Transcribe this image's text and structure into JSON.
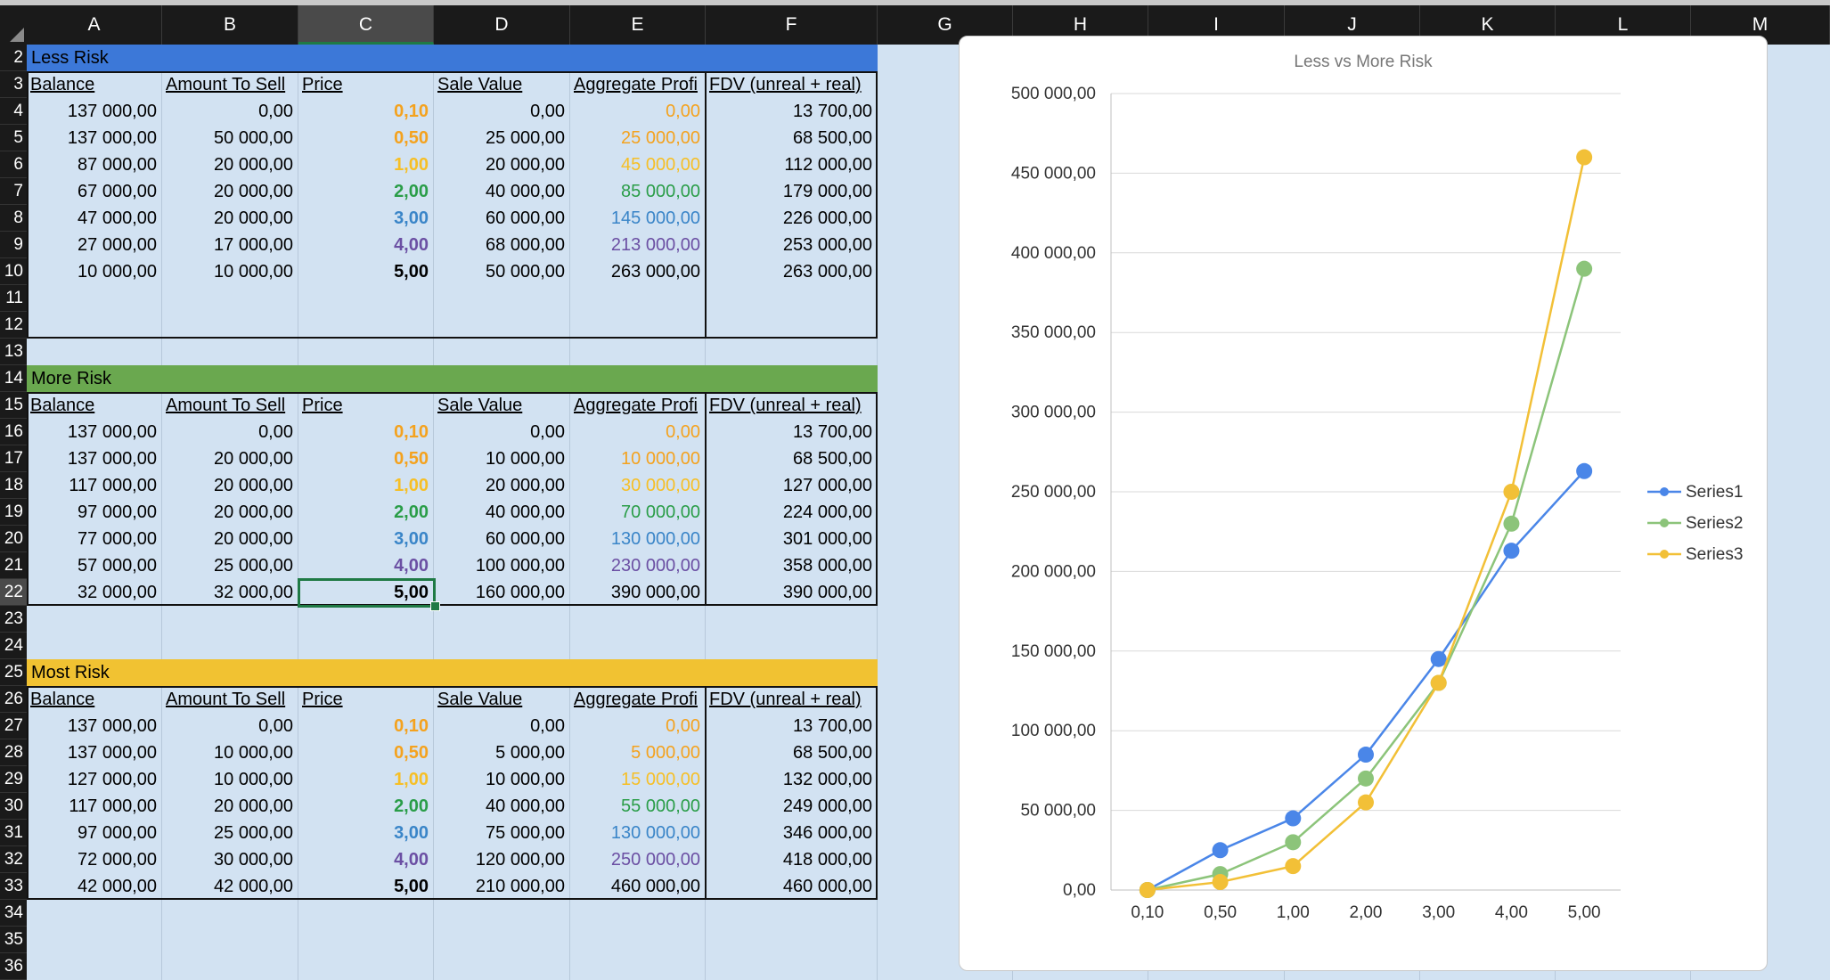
{
  "columns": [
    "A",
    "B",
    "C",
    "D",
    "E",
    "F",
    "G",
    "H",
    "I",
    "J",
    "K",
    "L",
    "M"
  ],
  "selected_column": "C",
  "rows": [
    "2",
    "3",
    "4",
    "5",
    "6",
    "7",
    "8",
    "9",
    "10",
    "11",
    "12",
    "13",
    "14",
    "15",
    "16",
    "17",
    "18",
    "19",
    "20",
    "21",
    "22",
    "23",
    "24",
    "25",
    "26",
    "27",
    "28",
    "29",
    "30",
    "31",
    "32",
    "33",
    "34",
    "35",
    "36"
  ],
  "selected_row": "22",
  "colors": {
    "less_band": "#3c78d8",
    "more_band": "#6aa84f",
    "most_band": "#f1c232",
    "price_010": "#f4a21e",
    "price_050": "#f4a21e",
    "price_100": "#f6bf26",
    "price_200": "#2a9d48",
    "price_300": "#3a85c8",
    "price_400": "#6b4fa3",
    "series1": "#4a86e8",
    "series2": "#8cc47a",
    "series3": "#f2c037"
  },
  "headers": [
    "Balance",
    "Amount To Sell",
    "Price",
    "Sale Value",
    "Aggregate Profi",
    "FDV (unreal + real)"
  ],
  "tables": [
    {
      "title": "Less Risk",
      "rows": [
        [
          "137 000,00",
          "0,00",
          "0,10",
          "0,00",
          "0,00",
          "13 700,00"
        ],
        [
          "137 000,00",
          "50 000,00",
          "0,50",
          "25 000,00",
          "25 000,00",
          "68 500,00"
        ],
        [
          "87 000,00",
          "20 000,00",
          "1,00",
          "20 000,00",
          "45 000,00",
          "112 000,00"
        ],
        [
          "67 000,00",
          "20 000,00",
          "2,00",
          "40 000,00",
          "85 000,00",
          "179 000,00"
        ],
        [
          "47 000,00",
          "20 000,00",
          "3,00",
          "60 000,00",
          "145 000,00",
          "226 000,00"
        ],
        [
          "27 000,00",
          "17 000,00",
          "4,00",
          "68 000,00",
          "213 000,00",
          "253 000,00"
        ],
        [
          "10 000,00",
          "10 000,00",
          "5,00",
          "50 000,00",
          "263 000,00",
          "263 000,00"
        ]
      ]
    },
    {
      "title": "More Risk",
      "rows": [
        [
          "137 000,00",
          "0,00",
          "0,10",
          "0,00",
          "0,00",
          "13 700,00"
        ],
        [
          "137 000,00",
          "20 000,00",
          "0,50",
          "10 000,00",
          "10 000,00",
          "68 500,00"
        ],
        [
          "117 000,00",
          "20 000,00",
          "1,00",
          "20 000,00",
          "30 000,00",
          "127 000,00"
        ],
        [
          "97 000,00",
          "20 000,00",
          "2,00",
          "40 000,00",
          "70 000,00",
          "224 000,00"
        ],
        [
          "77 000,00",
          "20 000,00",
          "3,00",
          "60 000,00",
          "130 000,00",
          "301 000,00"
        ],
        [
          "57 000,00",
          "25 000,00",
          "4,00",
          "100 000,00",
          "230 000,00",
          "358 000,00"
        ],
        [
          "32 000,00",
          "32 000,00",
          "5,00",
          "160 000,00",
          "390 000,00",
          "390 000,00"
        ]
      ]
    },
    {
      "title": "Most Risk",
      "rows": [
        [
          "137 000,00",
          "0,00",
          "0,10",
          "0,00",
          "0,00",
          "13 700,00"
        ],
        [
          "137 000,00",
          "10 000,00",
          "0,50",
          "5 000,00",
          "5 000,00",
          "68 500,00"
        ],
        [
          "127 000,00",
          "10 000,00",
          "1,00",
          "10 000,00",
          "15 000,00",
          "132 000,00"
        ],
        [
          "117 000,00",
          "20 000,00",
          "2,00",
          "40 000,00",
          "55 000,00",
          "249 000,00"
        ],
        [
          "97 000,00",
          "25 000,00",
          "3,00",
          "75 000,00",
          "130 000,00",
          "346 000,00"
        ],
        [
          "72 000,00",
          "30 000,00",
          "4,00",
          "120 000,00",
          "250 000,00",
          "418 000,00"
        ],
        [
          "42 000,00",
          "42 000,00",
          "5,00",
          "210 000,00",
          "460 000,00",
          "460 000,00"
        ]
      ]
    }
  ],
  "chart_data": {
    "type": "line",
    "title": "Less vs More Risk",
    "categories": [
      "0,10",
      "0,50",
      "1,00",
      "2,00",
      "3,00",
      "4,00",
      "5,00"
    ],
    "series": [
      {
        "name": "Series1",
        "values": [
          0,
          25000,
          45000,
          85000,
          145000,
          213000,
          263000
        ]
      },
      {
        "name": "Series2",
        "values": [
          0,
          10000,
          30000,
          70000,
          130000,
          230000,
          390000
        ]
      },
      {
        "name": "Series3",
        "values": [
          0,
          5000,
          15000,
          55000,
          130000,
          250000,
          460000
        ]
      }
    ],
    "yticks": [
      "0,00",
      "50 000,00",
      "100 000,00",
      "150 000,00",
      "200 000,00",
      "250 000,00",
      "300 000,00",
      "350 000,00",
      "400 000,00",
      "450 000,00",
      "500 000,00"
    ],
    "ylim": [
      0,
      500000
    ],
    "grid": true,
    "legend": "right"
  }
}
